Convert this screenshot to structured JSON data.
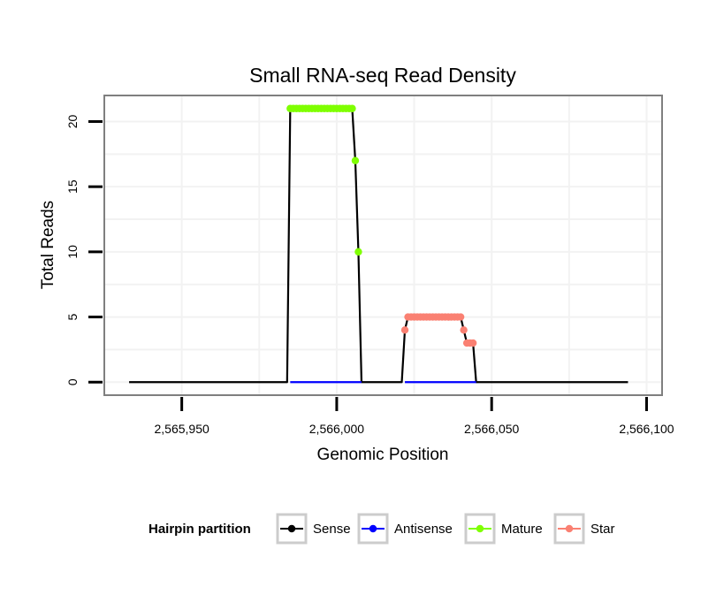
{
  "chart_data": {
    "type": "line",
    "title": "Small RNA-seq Read Density",
    "xlabel": "Genomic Position",
    "ylabel": "Total Reads",
    "xlim": [
      2565925,
      2566105
    ],
    "ylim": [
      -1,
      22
    ],
    "x_ticks": [
      2565950,
      2566000,
      2566050,
      2566100
    ],
    "x_tick_labels": [
      "2,565,950",
      "2,566,000",
      "2,566,050",
      "2,566,100"
    ],
    "y_ticks": [
      0,
      5,
      10,
      15,
      20
    ],
    "y_tick_labels": [
      "0",
      "5",
      "10",
      "15",
      "20"
    ],
    "grid": true,
    "legend": {
      "title": "Hairpin partition",
      "position": "bottom",
      "entries": [
        "Sense",
        "Antisense",
        "Mature",
        "Star"
      ]
    },
    "series": [
      {
        "name": "Sense",
        "color": "#000000",
        "x": [
          2565933,
          2565984,
          2565985,
          2566005,
          2566006,
          2566007,
          2566008,
          2566021,
          2566022,
          2566023,
          2566040,
          2566041,
          2566042,
          2566044,
          2566045,
          2566094
        ],
        "values": [
          0,
          0,
          21,
          21,
          17,
          10,
          0,
          0,
          4,
          5,
          5,
          4,
          3,
          3,
          0,
          0
        ]
      },
      {
        "name": "Antisense",
        "color": "#0000ff",
        "x": [
          2565985,
          2566008,
          2566022,
          2566045
        ],
        "values": [
          0,
          0,
          0,
          0
        ]
      },
      {
        "name": "Mature",
        "color": "#7fff00",
        "x": [
          2565985,
          2565986,
          2565987,
          2565988,
          2565989,
          2565990,
          2565991,
          2565992,
          2565993,
          2565994,
          2565995,
          2565996,
          2565997,
          2565998,
          2565999,
          2566000,
          2566001,
          2566002,
          2566003,
          2566004,
          2566005,
          2566006,
          2566007
        ],
        "values": [
          21,
          21,
          21,
          21,
          21,
          21,
          21,
          21,
          21,
          21,
          21,
          21,
          21,
          21,
          21,
          21,
          21,
          21,
          21,
          21,
          21,
          17,
          10
        ]
      },
      {
        "name": "Star",
        "color": "#fa8072",
        "x": [
          2566022,
          2566023,
          2566024,
          2566025,
          2566026,
          2566027,
          2566028,
          2566029,
          2566030,
          2566031,
          2566032,
          2566033,
          2566034,
          2566035,
          2566036,
          2566037,
          2566038,
          2566039,
          2566040,
          2566041,
          2566042,
          2566043,
          2566044
        ],
        "values": [
          4,
          5,
          5,
          5,
          5,
          5,
          5,
          5,
          5,
          5,
          5,
          5,
          5,
          5,
          5,
          5,
          5,
          5,
          5,
          4,
          3,
          3,
          3
        ]
      }
    ]
  }
}
